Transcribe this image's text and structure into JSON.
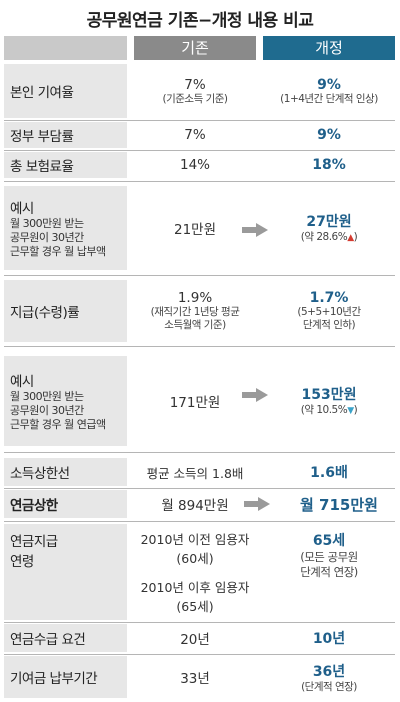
{
  "title": "공무원연금 기존−개정 내용 비교",
  "header": {
    "old": "기존",
    "new": "개정"
  },
  "rows": {
    "contrib": {
      "label": "본인 기여율",
      "old": "7%",
      "old_sub": "(기준소득 기준)",
      "new": "9%",
      "new_sub": "(1+4년간 단계적 인상)"
    },
    "gov": {
      "label": "정부 부담률",
      "old": "7%",
      "new": "9%"
    },
    "total": {
      "label": "총 보험료율",
      "old": "14%",
      "new": "18%"
    },
    "ex1": {
      "label": "예시",
      "label_sub1": "월 300만원 받는",
      "label_sub2": "공무원이 30년간",
      "label_sub3": "근무할 경우 월 납부액",
      "old": "21만원",
      "new": "27만원",
      "new_sub": "(약 28.6%",
      "new_sign": "▲",
      "new_close": ")"
    },
    "payrate": {
      "label": "지급(수령)률",
      "old": "1.9%",
      "old_sub1": "(재직기간 1년당 평균",
      "old_sub2": "소득월액 기준)",
      "new": "1.7%",
      "new_sub1": "(5+5+10년간",
      "new_sub2": "단계적 인하)"
    },
    "ex2": {
      "label": "예시",
      "label_sub1": "월 300만원 받는",
      "label_sub2": "공무원이 30년간",
      "label_sub3": "근무할 경우 월 연급액",
      "old": "171만원",
      "new": "153만원",
      "new_sub": "(약 10.5%",
      "new_sign": "▼",
      "new_close": ")"
    },
    "inccap": {
      "label": "소득상한선",
      "old": "평균 소득의 1.8배",
      "new": "1.6배"
    },
    "pencap": {
      "label": "연금상한",
      "old": "월 894만원",
      "new": "월 715만원"
    },
    "age": {
      "label1": "연금지급",
      "label2": "연령",
      "old_a1": "2010년 이전 임용자",
      "old_a2": "(60세)",
      "old_b1": "2010년 이후 임용자",
      "old_b2": "(65세)",
      "new": "65세",
      "new_sub1": "(모든 공무원",
      "new_sub2": "단계적 연장)"
    },
    "req": {
      "label": "연금수급 요건",
      "old": "20년",
      "new": "10년"
    },
    "period": {
      "label": "기여금 납부기간",
      "old": "33년",
      "new": "36년",
      "new_sub": "(단계적 연장)"
    }
  },
  "colors": {
    "new_header": "#1f6b8f",
    "old_header": "#8a8a8a",
    "new_value": "#1f5f8a",
    "up": "#d43a2f",
    "down": "#3aa3c9"
  }
}
